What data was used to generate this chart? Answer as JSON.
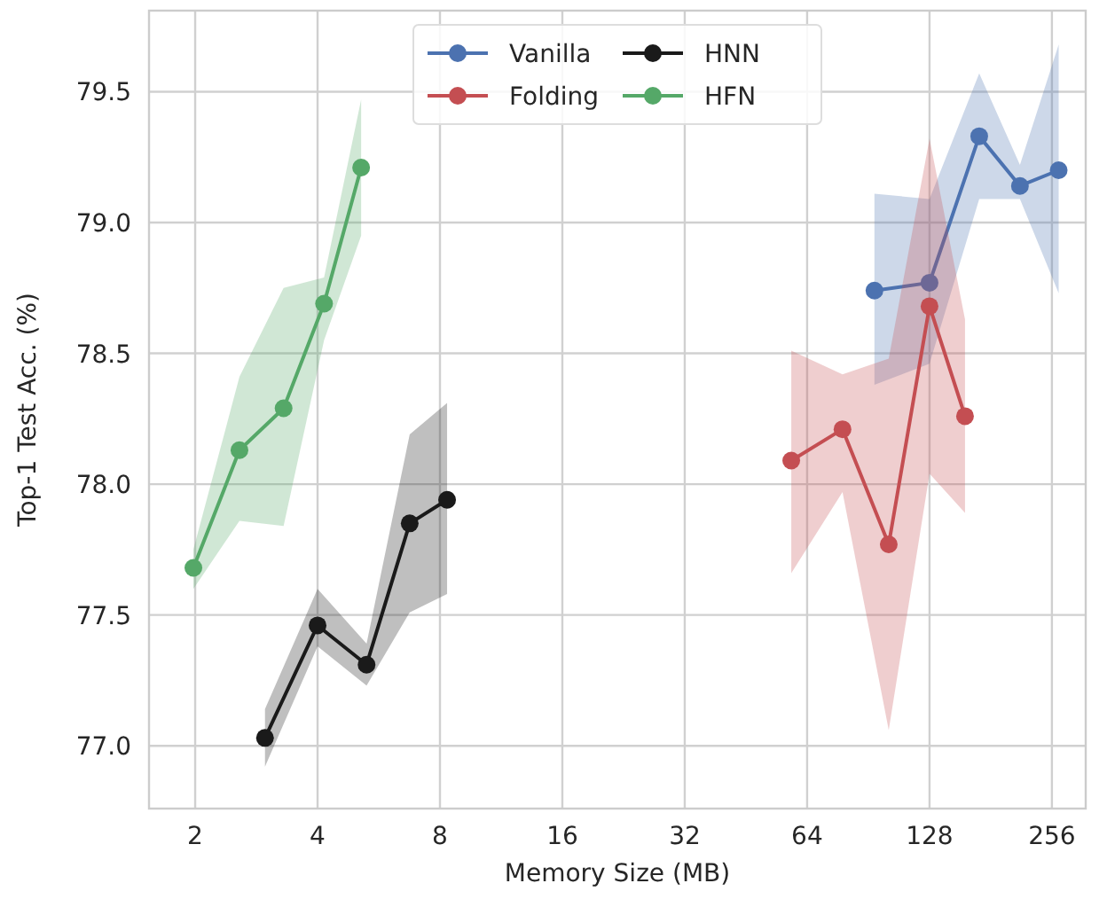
{
  "chart_data": {
    "type": "line",
    "xlabel": "Memory Size (MB)",
    "ylabel": "Top-1 Test Acc. (%)",
    "log": "x",
    "xlim": [
      1.54,
      310
    ],
    "xticks": [
      2,
      4,
      8,
      16,
      32,
      64,
      128,
      256
    ],
    "ylim": [
      76.76,
      79.81
    ],
    "yticks": [
      {
        "value": 77,
        "label": "77.0"
      },
      77.5,
      {
        "value": 78,
        "label": "78.0"
      },
      78.5,
      {
        "value": 79,
        "label": "79.0"
      },
      79.5
    ],
    "grid": true,
    "legend": "top",
    "marker": "circle",
    "line_style": "solid",
    "series": [
      {
        "name": "Vanilla",
        "color": "#4c72b0",
        "x": [
          93.7,
          128,
          169.6,
          213.6,
          266
        ],
        "values": [
          78.74,
          78.77,
          79.33,
          79.14,
          79.2
        ],
        "lower": [
          78.38,
          78.46,
          79.09,
          79.09,
          78.73
        ],
        "upper": [
          79.11,
          79.09,
          79.57,
          79.22,
          79.68
        ]
      },
      {
        "name": "Folding",
        "color": "#c44e52",
        "x": [
          58.5,
          78.2,
          101.6,
          128,
          156.5
        ],
        "values": [
          78.09,
          78.21,
          77.77,
          78.68,
          78.26
        ],
        "lower": [
          77.66,
          77.97,
          77.06,
          78.04,
          77.89
        ],
        "upper": [
          78.51,
          78.42,
          78.48,
          79.32,
          78.63
        ]
      },
      {
        "name": "HNN",
        "color": "#1a1a1a",
        "x": [
          2.97,
          4,
          5.28,
          6.74,
          8.33
        ],
        "values": [
          77.03,
          77.46,
          77.31,
          77.85,
          77.94
        ],
        "lower": [
          76.92,
          77.38,
          77.23,
          77.51,
          77.58
        ],
        "upper": [
          77.14,
          77.6,
          77.39,
          78.19,
          78.31
        ]
      },
      {
        "name": "HFN",
        "color": "#55a868",
        "x": [
          1.98,
          2.57,
          3.3,
          4.15,
          5.12
        ],
        "values": [
          77.68,
          78.13,
          78.29,
          78.69,
          79.21
        ],
        "lower": [
          77.6,
          77.86,
          77.84,
          78.55,
          78.95
        ],
        "upper": [
          77.75,
          78.41,
          78.75,
          78.79,
          79.47
        ]
      }
    ]
  }
}
